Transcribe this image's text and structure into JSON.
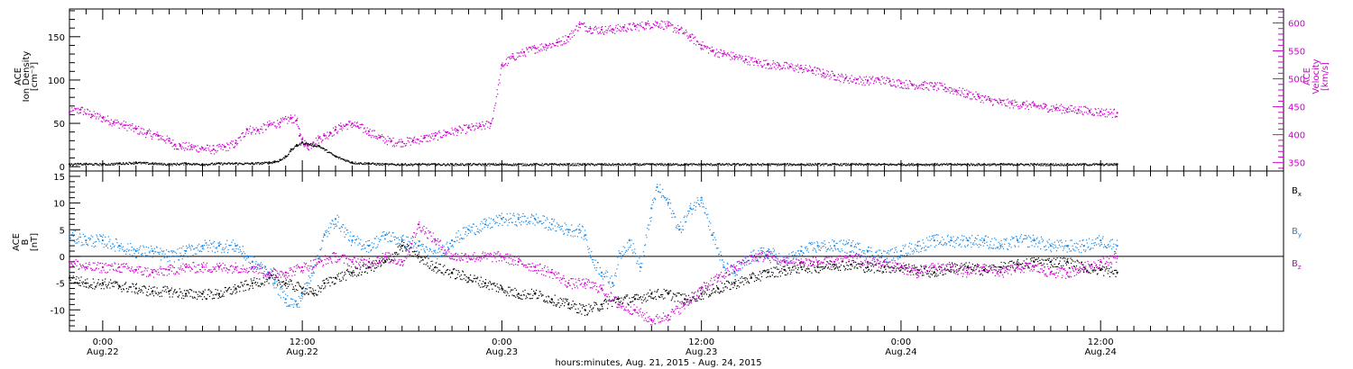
{
  "chart_data": [
    {
      "type": "scatter",
      "panel": "top",
      "ylabel_lines": [
        "ACE",
        "Ion Density",
        "[cm⁻³]"
      ],
      "ylim": [
        -5,
        182
      ],
      "yticks": [
        0,
        50,
        100,
        150
      ],
      "y2label_lines": [
        "ACE",
        "Velocity",
        "[km/s]"
      ],
      "y2lim": [
        335,
        625
      ],
      "y2ticks": [
        350,
        400,
        450,
        500,
        550,
        600
      ],
      "grid": false,
      "series": [
        {
          "name": "",
          "axis": "left",
          "color": "#000000",
          "x": [
            -6,
            -3,
            0,
            3,
            6,
            9,
            12,
            15,
            18,
            21,
            24,
            27,
            30,
            31,
            32,
            33,
            34,
            35,
            36,
            39,
            42,
            45,
            48,
            51,
            54,
            57,
            60,
            63,
            66,
            69,
            72,
            75,
            78,
            81,
            84,
            87,
            90,
            93,
            96,
            99,
            102,
            105,
            108,
            111,
            114,
            117,
            120,
            123,
            126,
            129,
            132,
            135,
            138,
            141,
            144,
            147,
            150,
            153,
            156,
            159,
            162,
            165,
            168,
            171,
            174,
            177,
            180,
            183
          ],
          "values": [
            3,
            3.5,
            3,
            4,
            5,
            4,
            3,
            4,
            3,
            4,
            4,
            4,
            5,
            6,
            8,
            12,
            20,
            25,
            28,
            24,
            12,
            5,
            4,
            3,
            3,
            3,
            3,
            3,
            3,
            3,
            3,
            3,
            3,
            3,
            3,
            3,
            3,
            3,
            3,
            3,
            3,
            3,
            3,
            3,
            3,
            3,
            3,
            3,
            3,
            3,
            3,
            3,
            3,
            3,
            3,
            3,
            3,
            3,
            3,
            3,
            3,
            3,
            3,
            3,
            3,
            3,
            3,
            3
          ]
        },
        {
          "name": "",
          "axis": "right",
          "color": "#cc00cc",
          "x": [
            -6,
            -4,
            -2,
            0,
            2,
            4,
            6,
            8,
            10,
            12,
            13,
            14,
            16,
            18,
            20,
            22,
            24,
            26,
            28,
            30,
            32,
            34,
            35,
            35.5,
            36,
            36.5,
            37,
            38,
            39,
            40,
            41,
            42,
            43,
            44,
            45,
            46,
            48,
            50,
            52,
            54,
            56,
            58,
            60,
            62,
            64,
            66,
            68,
            70,
            72,
            74,
            76,
            78,
            80,
            82,
            84,
            86,
            88,
            90,
            92,
            94,
            96,
            98,
            100,
            102,
            104,
            106,
            108,
            110,
            112,
            114,
            116,
            118,
            120,
            122,
            124,
            126,
            128,
            130,
            132,
            134,
            136,
            138,
            140,
            142,
            144,
            146,
            148,
            150,
            152,
            154,
            156,
            158,
            160,
            162,
            164,
            166,
            168,
            170,
            172,
            174,
            176,
            178,
            180,
            183
          ],
          "values": [
            440,
            445,
            436,
            430,
            423,
            417,
            410,
            403,
            398,
            389,
            382,
            380,
            378,
            376,
            374,
            378,
            385,
            410,
            408,
            418,
            422,
            430,
            426,
            398,
            392,
            382,
            380,
            386,
            394,
            398,
            404,
            409,
            415,
            418,
            420,
            415,
            406,
            395,
            388,
            387,
            390,
            394,
            398,
            404,
            408,
            412,
            415,
            420,
            525,
            540,
            548,
            555,
            560,
            565,
            575,
            598,
            590,
            588,
            589,
            592,
            594,
            597,
            600,
            595,
            588,
            575,
            560,
            550,
            545,
            540,
            535,
            530,
            527,
            524,
            522,
            519,
            516,
            510,
            506,
            501,
            499,
            497,
            499,
            496,
            492,
            490,
            489,
            487,
            484,
            479,
            473,
            468,
            462,
            458,
            456,
            454,
            452,
            450,
            448,
            446,
            445,
            443,
            441,
            439
          ]
        }
      ]
    },
    {
      "type": "scatter",
      "panel": "bottom",
      "ylabel_lines": [
        "ACE",
        "B",
        "[nT]"
      ],
      "ylim": [
        -14,
        16
      ],
      "yticks": [
        -10,
        -5,
        0,
        5,
        10,
        15
      ],
      "zero_line": true,
      "xlabel": "hours:minutes, Aug. 21, 2015 - Aug. 24, 2015",
      "xlim": [
        -6,
        213
      ],
      "xticks": [
        {
          "h": 0,
          "time": "0:00",
          "date": "Aug.22"
        },
        {
          "h": 36,
          "time": "12:00",
          "date": "Aug.22"
        },
        {
          "h": 72,
          "time": "0:00",
          "date": "Aug.23"
        },
        {
          "h": 108,
          "time": "12:00",
          "date": "Aug.23"
        },
        {
          "h": 144,
          "time": "0:00",
          "date": "Aug.24"
        },
        {
          "h": 180,
          "time": "12:00",
          "date": "Aug.24"
        }
      ],
      "series": [
        {
          "name": "Bx",
          "label_main": "B",
          "label_sub": "x",
          "color": "#000000",
          "x": [
            -6,
            -3,
            0,
            3,
            6,
            9,
            12,
            15,
            18,
            21,
            24,
            27,
            30,
            33,
            36,
            38,
            40,
            42,
            45,
            48,
            51,
            54,
            57,
            60,
            63,
            66,
            69,
            72,
            75,
            78,
            81,
            84,
            87,
            90,
            93,
            96,
            99,
            102,
            105,
            108,
            111,
            114,
            117,
            120,
            123,
            126,
            129,
            132,
            135,
            138,
            141,
            144,
            147,
            150,
            153,
            156,
            159,
            162,
            165,
            168,
            171,
            174,
            177,
            180,
            183
          ],
          "values": [
            -4,
            -5,
            -5,
            -5.5,
            -6,
            -6.5,
            -6.5,
            -7,
            -7,
            -7,
            -6,
            -5,
            -4,
            -5,
            -6,
            -7,
            -5,
            -4,
            -3,
            -2,
            -1,
            2,
            0,
            -2,
            -3,
            -4,
            -5,
            -6,
            -7,
            -7,
            -8,
            -9,
            -10,
            -9,
            -8,
            -8,
            -7,
            -7,
            -8,
            -7,
            -6,
            -5,
            -4,
            -3,
            -2.5,
            -2,
            -2,
            -1.5,
            -1.5,
            -2,
            -2,
            -2,
            -2.5,
            -3,
            -2,
            -2,
            -2.5,
            -2,
            -1.5,
            -1,
            -1,
            -1,
            -2,
            -2.5,
            -3
          ]
        },
        {
          "name": "By",
          "label_main": "B",
          "label_sub": "y",
          "color": "#1a8ae6",
          "x": [
            -6,
            -3,
            0,
            3,
            6,
            9,
            12,
            15,
            18,
            21,
            24,
            27,
            30,
            31,
            33,
            35,
            36,
            38,
            40,
            42,
            45,
            48,
            51,
            54,
            57,
            60,
            63,
            66,
            69,
            72,
            75,
            78,
            81,
            84,
            86,
            87,
            88,
            90,
            92,
            93,
            95,
            97,
            99,
            100,
            102,
            104,
            106,
            108,
            110,
            112,
            114,
            117,
            120,
            123,
            126,
            129,
            132,
            135,
            138,
            141,
            144,
            147,
            150,
            153,
            156,
            159,
            162,
            165,
            168,
            171,
            174,
            177,
            180,
            183
          ],
          "values": [
            4,
            3,
            3,
            2,
            1,
            1,
            0,
            1,
            2,
            2,
            2,
            -1,
            -3,
            -5,
            -8,
            -9,
            -7,
            -2,
            4,
            7,
            3,
            2,
            4,
            3,
            2,
            0,
            3,
            5,
            6,
            7,
            7,
            7,
            6,
            5,
            5,
            4,
            0,
            -3,
            -5,
            0,
            3,
            -2,
            9,
            13,
            10,
            5,
            9,
            11,
            4,
            -2,
            -3,
            0,
            1,
            -1,
            1,
            2,
            2,
            2,
            1,
            0,
            1,
            2,
            3,
            3,
            3,
            3,
            2,
            3,
            3,
            2,
            2,
            2,
            3,
            2
          ]
        },
        {
          "name": "Bz",
          "label_main": "B",
          "label_sub": "z",
          "color": "#cc00cc",
          "x": [
            -6,
            -3,
            0,
            3,
            6,
            9,
            12,
            15,
            18,
            21,
            24,
            27,
            30,
            33,
            36,
            39,
            42,
            45,
            48,
            51,
            54,
            57,
            60,
            63,
            66,
            69,
            72,
            75,
            78,
            81,
            84,
            87,
            90,
            93,
            96,
            99,
            102,
            105,
            108,
            111,
            114,
            117,
            120,
            123,
            126,
            129,
            132,
            135,
            138,
            141,
            144,
            147,
            150,
            153,
            156,
            159,
            162,
            165,
            168,
            171,
            174,
            177,
            180,
            183
          ],
          "values": [
            -1,
            -2,
            -2,
            -2,
            -2.5,
            -3,
            -2.5,
            -2,
            -2,
            -2,
            -2,
            -2,
            -3,
            -3,
            -2,
            -1,
            0,
            -1,
            -1,
            0,
            -1,
            6,
            3,
            0,
            0,
            0,
            0,
            -1,
            -2,
            -3,
            -5,
            -5,
            -6,
            -9,
            -10,
            -12,
            -11,
            -9,
            -6,
            -4,
            -2,
            0,
            0,
            -1,
            -1,
            -1,
            -1,
            0,
            -1,
            -1,
            -2,
            -3,
            -2,
            -2,
            -3,
            -2,
            -3,
            -2,
            -2,
            -3,
            -3,
            -2,
            -1,
            0
          ]
        }
      ]
    }
  ]
}
